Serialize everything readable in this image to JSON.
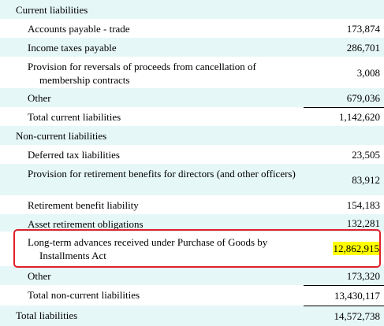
{
  "rows": {
    "current_liabilities": {
      "label": "Current liabilities",
      "value": ""
    },
    "accounts_payable": {
      "label": "Accounts payable - trade",
      "value": "173,874"
    },
    "income_taxes": {
      "label": "Income taxes payable",
      "value": "286,701"
    },
    "provision_reversals": {
      "label": "Provision for reversals of proceeds from cancellation of membership contracts",
      "value": "3,008"
    },
    "other_current": {
      "label": "Other",
      "value": "679,036"
    },
    "total_current": {
      "label": "Total current liabilities",
      "value": "1,142,620"
    },
    "non_current_liabilities": {
      "label": "Non-current liabilities",
      "value": ""
    },
    "deferred_tax": {
      "label": "Deferred tax liabilities",
      "value": "23,505"
    },
    "retirement_directors": {
      "label": "Provision for retirement benefits for directors (and other officers)",
      "value": "83,912"
    },
    "retirement_benefit": {
      "label": "Retirement benefit liability",
      "value": "154,183"
    },
    "asset_retirement": {
      "label": "Asset retirement obligations",
      "value": "132,281"
    },
    "long_term_advances": {
      "label": "Long-term advances received under Purchase of Goods by Installments Act",
      "value": "12,862,915"
    },
    "other_non_current": {
      "label": "Other",
      "value": "173,320"
    },
    "total_non_current": {
      "label": "Total non-current liabilities",
      "value": "13,430,117"
    },
    "total_liabilities": {
      "label": "Total liabilities",
      "value": "14,572,738"
    }
  },
  "colors": {
    "row_shade": "#e6f7f7",
    "highlight": "#ffff00",
    "annotation_box": "#e0202a"
  }
}
